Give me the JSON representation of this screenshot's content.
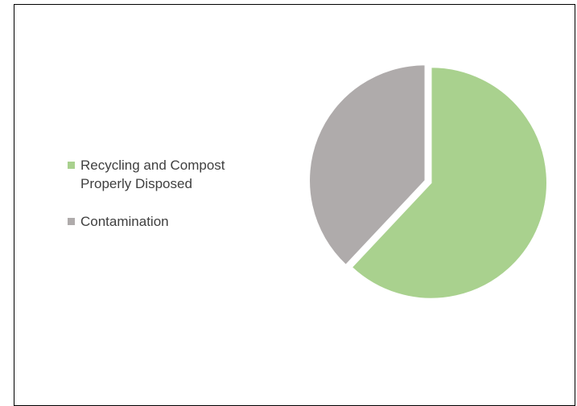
{
  "chart_data": {
    "type": "pie",
    "title": "",
    "slices": [
      {
        "label": "Recycling and Compost Properly Disposed",
        "value": 62,
        "color": "#a9d18e"
      },
      {
        "label": "Contamination",
        "value": 38,
        "color": "#afabab"
      }
    ],
    "legend_position": "left",
    "exploded": true
  }
}
